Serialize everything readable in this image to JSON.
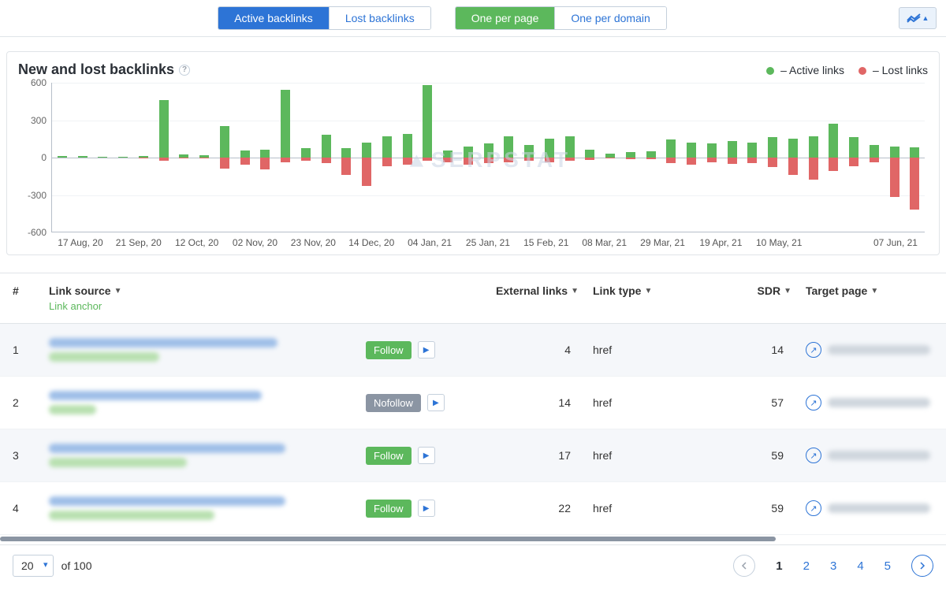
{
  "colors": {
    "blue": "#2d74d6",
    "green": "#5cb85c",
    "red": "#e06666",
    "gray_badge": "#8b95a3",
    "text": "#2a2f36",
    "grid": "#f0f2f5",
    "border": "#c5d0dc",
    "watermark": "#c9d5e4"
  },
  "toolbar": {
    "group1": {
      "active": "Active backlinks",
      "inactive": "Lost backlinks"
    },
    "group2": {
      "active": "One per page",
      "inactive": "One per domain"
    }
  },
  "chart": {
    "title": "New and lost backlinks",
    "legend": {
      "active": "– Active links",
      "lost": "– Lost links"
    },
    "watermark": "SERPSTAT",
    "type": "bar",
    "ylim": [
      -600,
      600
    ],
    "yticks": [
      600,
      300,
      0,
      -300,
      -600
    ],
    "x_labels": [
      "17 Aug, 20",
      "21 Sep, 20",
      "12 Oct, 20",
      "02 Nov, 20",
      "23 Nov, 20",
      "14 Dec, 20",
      "04 Jan, 21",
      "25 Jan, 21",
      "15 Feb, 21",
      "08 Mar, 21",
      "29 Mar, 21",
      "19 Apr, 21",
      "10 May, 21",
      "",
      "07 Jun, 21"
    ],
    "x_label_every": 3,
    "bar_color_pos": "#5cb85c",
    "bar_color_neg": "#e06666",
    "series": [
      {
        "p": 10,
        "n": 0
      },
      {
        "p": 8,
        "n": 0
      },
      {
        "p": 6,
        "n": 0
      },
      {
        "p": 6,
        "n": 0
      },
      {
        "p": 8,
        "n": -6
      },
      {
        "p": 460,
        "n": -30
      },
      {
        "p": 25,
        "n": -10
      },
      {
        "p": 18,
        "n": -8
      },
      {
        "p": 250,
        "n": -90
      },
      {
        "p": 55,
        "n": -60
      },
      {
        "p": 60,
        "n": -100
      },
      {
        "p": 540,
        "n": -40
      },
      {
        "p": 70,
        "n": -30
      },
      {
        "p": 180,
        "n": -50
      },
      {
        "p": 70,
        "n": -140
      },
      {
        "p": 120,
        "n": -230
      },
      {
        "p": 170,
        "n": -70
      },
      {
        "p": 190,
        "n": -60
      },
      {
        "p": 580,
        "n": -30
      },
      {
        "p": 55,
        "n": -40
      },
      {
        "p": 85,
        "n": -60
      },
      {
        "p": 110,
        "n": -50
      },
      {
        "p": 170,
        "n": -40
      },
      {
        "p": 100,
        "n": -30
      },
      {
        "p": 150,
        "n": -40
      },
      {
        "p": 170,
        "n": -30
      },
      {
        "p": 60,
        "n": -20
      },
      {
        "p": 30,
        "n": -10
      },
      {
        "p": 40,
        "n": -15
      },
      {
        "p": 50,
        "n": -18
      },
      {
        "p": 140,
        "n": -50
      },
      {
        "p": 120,
        "n": -60
      },
      {
        "p": 110,
        "n": -40
      },
      {
        "p": 130,
        "n": -55
      },
      {
        "p": 120,
        "n": -45
      },
      {
        "p": 160,
        "n": -80
      },
      {
        "p": 150,
        "n": -140
      },
      {
        "p": 170,
        "n": -180
      },
      {
        "p": 270,
        "n": -110
      },
      {
        "p": 160,
        "n": -70
      },
      {
        "p": 100,
        "n": -40
      },
      {
        "p": 85,
        "n": -320
      },
      {
        "p": 80,
        "n": -420
      }
    ]
  },
  "table": {
    "headers": {
      "index": "#",
      "source": "Link source",
      "anchor": "Link anchor",
      "external": "External links",
      "link_type": "Link type",
      "sdr": "SDR",
      "target": "Target page"
    },
    "rows": [
      {
        "idx": "1",
        "follow": "Follow",
        "follow_color": "#5cb85c",
        "external": "4",
        "type": "href",
        "sdr": "14",
        "src_w1": 290,
        "src_w2": 140
      },
      {
        "idx": "2",
        "follow": "Nofollow",
        "follow_color": "#8b95a3",
        "external": "14",
        "type": "href",
        "sdr": "57",
        "src_w1": 270,
        "src_w2": 60
      },
      {
        "idx": "3",
        "follow": "Follow",
        "follow_color": "#5cb85c",
        "external": "17",
        "type": "href",
        "sdr": "59",
        "src_w1": 300,
        "src_w2": 175
      },
      {
        "idx": "4",
        "follow": "Follow",
        "follow_color": "#5cb85c",
        "external": "22",
        "type": "href",
        "sdr": "59",
        "src_w1": 300,
        "src_w2": 210
      }
    ]
  },
  "footer": {
    "page_size": "20",
    "of_total": "of 100",
    "pages": [
      "1",
      "2",
      "3",
      "4",
      "5"
    ],
    "current": "1"
  }
}
